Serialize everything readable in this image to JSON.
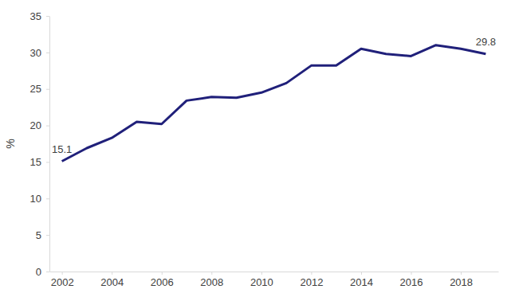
{
  "chart_data": {
    "type": "line",
    "y_label": "%",
    "x": [
      2002,
      2003,
      2004,
      2005,
      2006,
      2007,
      2008,
      2009,
      2010,
      2011,
      2012,
      2013,
      2014,
      2015,
      2016,
      2017,
      2018,
      2019
    ],
    "values": [
      15.1,
      16.9,
      18.3,
      20.5,
      20.2,
      23.4,
      23.9,
      23.8,
      24.5,
      25.8,
      28.2,
      28.2,
      30.5,
      29.8,
      29.5,
      31.0,
      30.5,
      29.8
    ],
    "value_labels": [
      "15.1",
      null,
      null,
      null,
      null,
      null,
      null,
      null,
      null,
      null,
      null,
      null,
      null,
      null,
      null,
      null,
      null,
      "29.8"
    ],
    "color": "#20207a",
    "xlim": [
      2001.5,
      2019.5
    ],
    "xticks": [
      2002,
      2004,
      2006,
      2008,
      2010,
      2012,
      2014,
      2016,
      2018
    ],
    "ylim": [
      0,
      35
    ],
    "yticks": [
      0,
      5,
      10,
      15,
      20,
      25,
      30,
      35
    ],
    "grid": false
  }
}
